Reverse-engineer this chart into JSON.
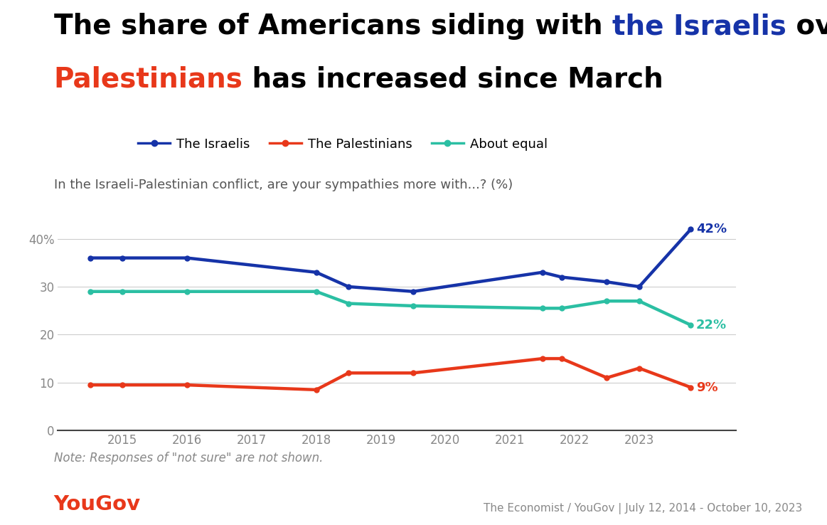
{
  "subtitle": "In the Israeli-Palestinian conflict, are your sympathies more with...? (%)",
  "note": "Note: Responses of \"not sure\" are not shown.",
  "source": "The Economist / YouGov | July 12, 2014 - October 10, 2023",
  "yougov_text": "YouGov",
  "israelis": {
    "x": [
      2014.5,
      2015.0,
      2016.0,
      2018.0,
      2018.5,
      2019.5,
      2021.5,
      2021.8,
      2022.5,
      2023.0,
      2023.8
    ],
    "y": [
      36,
      36,
      36,
      33,
      30,
      29,
      33,
      32,
      31,
      30,
      42
    ],
    "color": "#1633a8",
    "label": "The Israelis",
    "end_label": "42%"
  },
  "palestinians": {
    "x": [
      2014.5,
      2015.0,
      2016.0,
      2018.0,
      2018.5,
      2019.5,
      2021.5,
      2021.8,
      2022.5,
      2023.0,
      2023.8
    ],
    "y": [
      9.5,
      9.5,
      9.5,
      8.5,
      12,
      12,
      15,
      15,
      11,
      13,
      9
    ],
    "color": "#e8381a",
    "label": "The Palestinians",
    "end_label": "9%"
  },
  "equal": {
    "x": [
      2014.5,
      2015.0,
      2016.0,
      2018.0,
      2018.5,
      2019.5,
      2021.5,
      2021.8,
      2022.5,
      2023.0,
      2023.8
    ],
    "y": [
      29,
      29,
      29,
      29,
      26.5,
      26,
      25.5,
      25.5,
      27,
      27,
      22
    ],
    "color": "#2bbfa3",
    "label": "About equal",
    "end_label": "22%"
  },
  "ylim": [
    0,
    46
  ],
  "yticks": [
    0,
    10,
    20,
    30,
    40
  ],
  "ytick_labels": [
    "0",
    "10",
    "20",
    "30",
    "40%"
  ],
  "xlim": [
    2014.0,
    2024.5
  ],
  "xticks": [
    2015,
    2016,
    2017,
    2018,
    2019,
    2020,
    2021,
    2022,
    2023
  ],
  "background_color": "#ffffff",
  "grid_color": "#cccccc",
  "axis_color": "#888888",
  "title_fontsize": 28,
  "subtitle_fontsize": 13,
  "legend_fontsize": 13,
  "note_fontsize": 12,
  "source_fontsize": 11,
  "line_color_black": "#000000",
  "line_color_blue": "#1633a8",
  "line_color_red": "#e8381a"
}
